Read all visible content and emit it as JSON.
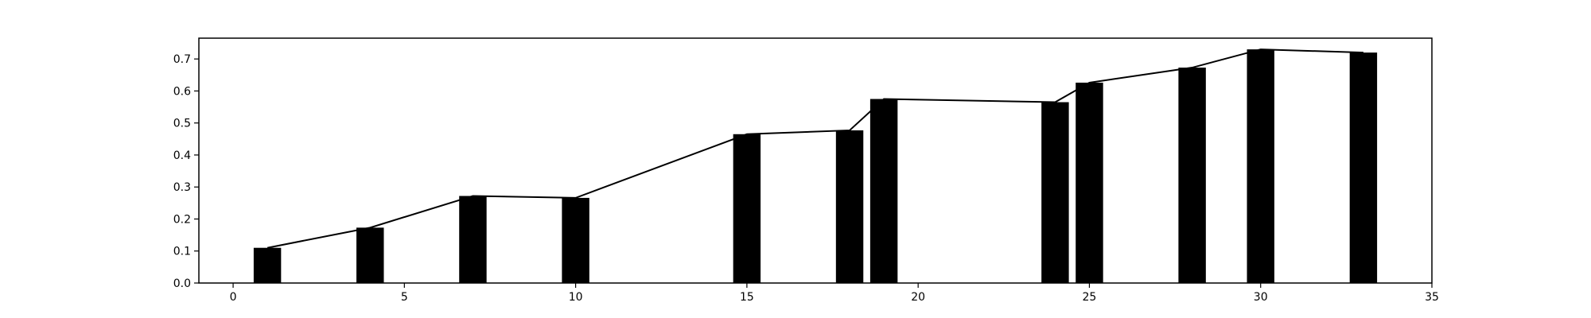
{
  "chart_data": {
    "type": "bar",
    "title": "",
    "xlabel": "",
    "ylabel": "",
    "xlim": [
      -1,
      35
    ],
    "ylim": [
      0,
      0.765
    ],
    "grid": false,
    "xticks": [
      0,
      5,
      10,
      15,
      20,
      25,
      30,
      35
    ],
    "xtick_labels": [
      "0",
      "5",
      "10",
      "15",
      "20",
      "25",
      "30",
      "35"
    ],
    "yticks": [
      0.0,
      0.1,
      0.2,
      0.3,
      0.4,
      0.5,
      0.6,
      0.7
    ],
    "ytick_labels": [
      "0.0",
      "0.1",
      "0.2",
      "0.3",
      "0.4",
      "0.5",
      "0.6",
      "0.7"
    ],
    "bar_width": 0.8,
    "x": [
      1,
      4,
      7,
      10,
      15,
      18,
      19,
      24,
      25,
      28,
      30,
      33
    ],
    "series": [
      {
        "type": "bar",
        "x": [
          1,
          4,
          7,
          10,
          15,
          18,
          19,
          24,
          25,
          28,
          30,
          33
        ],
        "values": [
          0.11,
          0.173,
          0.272,
          0.266,
          0.465,
          0.477,
          0.575,
          0.565,
          0.626,
          0.673,
          0.73,
          0.72
        ]
      },
      {
        "type": "line",
        "x": [
          1,
          4,
          7,
          10,
          15,
          18,
          19,
          24,
          25,
          28,
          30,
          33
        ],
        "values": [
          0.11,
          0.173,
          0.272,
          0.266,
          0.465,
          0.477,
          0.575,
          0.565,
          0.626,
          0.673,
          0.73,
          0.72
        ]
      }
    ],
    "colors": {
      "bar": "#000000",
      "line": "#000000",
      "axes": "#000000",
      "background": "#ffffff"
    }
  }
}
